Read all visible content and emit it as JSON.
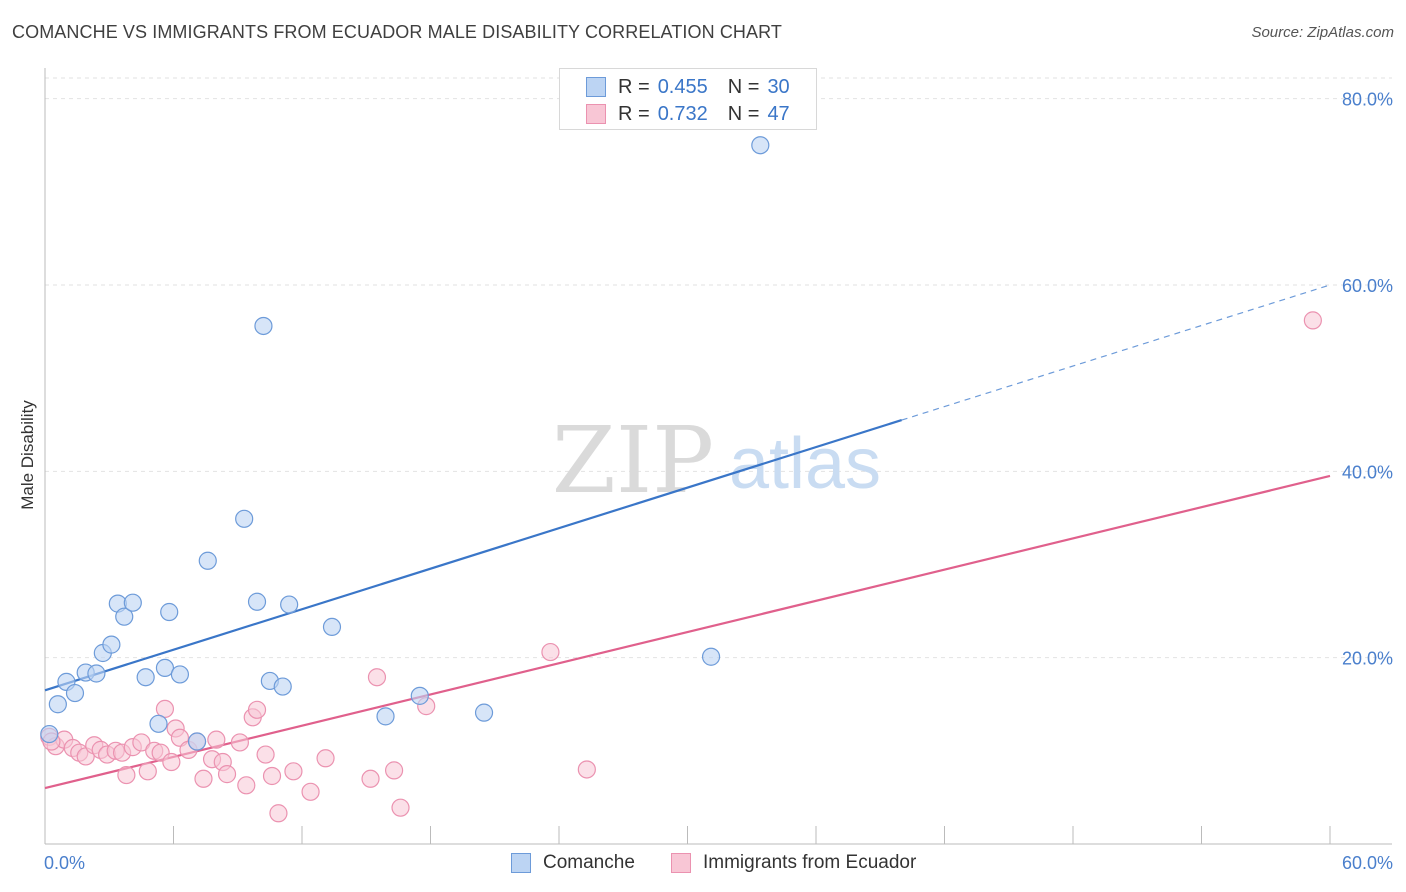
{
  "title": "COMANCHE VS IMMIGRANTS FROM ECUADOR MALE DISABILITY CORRELATION CHART",
  "source": "Source: ZipAtlas.com",
  "watermark": {
    "zip": "ZIP",
    "atlas": "atlas"
  },
  "colors": {
    "blue": "#3a76c8",
    "blue_fill": "#bcd4f3",
    "blue_stroke": "#6d9bd9",
    "pink": "#e0608c",
    "pink_fill": "#f8c6d5",
    "pink_stroke": "#eb92b0",
    "grid": "#e2e2e2",
    "tick_text": "#4a7fcc"
  },
  "legend": {
    "series": [
      {
        "r_label": "R =",
        "r_value": "0.455",
        "n_label": "N =",
        "n_value": "30"
      },
      {
        "r_label": "R =",
        "r_value": "0.732",
        "n_label": "N =",
        "n_value": "47"
      }
    ]
  },
  "bottom_legend": [
    "Comanche",
    "Immigrants from Ecuador"
  ],
  "chart_data": {
    "type": "scatter",
    "title": "COMANCHE VS IMMIGRANTS FROM ECUADOR MALE DISABILITY CORRELATION CHART",
    "xlabel": "",
    "ylabel": "Male Disability",
    "xlim": [
      0,
      60
    ],
    "ylim": [
      0,
      82
    ],
    "x_tick_labels": [
      "0.0%",
      "60.0%"
    ],
    "y_ticks": [
      20,
      40,
      60,
      80
    ],
    "y_tick_labels": [
      "20.0%",
      "40.0%",
      "60.0%",
      "80.0%"
    ],
    "x_minor_ticks": [
      0,
      6,
      12,
      18,
      24,
      30,
      36,
      42,
      48,
      54,
      60
    ],
    "grid": true,
    "series": [
      {
        "name": "Comanche",
        "color": "blue",
        "r": 0.455,
        "n": 30,
        "points": [
          [
            0.2,
            11.8
          ],
          [
            0.6,
            15.0
          ],
          [
            1.0,
            17.4
          ],
          [
            1.4,
            16.2
          ],
          [
            1.9,
            18.4
          ],
          [
            2.4,
            18.3
          ],
          [
            2.7,
            20.5
          ],
          [
            3.1,
            21.4
          ],
          [
            3.4,
            25.8
          ],
          [
            3.7,
            24.4
          ],
          [
            4.1,
            25.9
          ],
          [
            4.7,
            17.9
          ],
          [
            5.3,
            12.9
          ],
          [
            5.6,
            18.9
          ],
          [
            5.8,
            24.9
          ],
          [
            6.3,
            18.2
          ],
          [
            7.1,
            11.0
          ],
          [
            7.6,
            30.4
          ],
          [
            9.3,
            34.9
          ],
          [
            9.9,
            26.0
          ],
          [
            10.2,
            55.6
          ],
          [
            10.5,
            17.5
          ],
          [
            11.1,
            16.9
          ],
          [
            11.4,
            25.7
          ],
          [
            13.4,
            23.3
          ],
          [
            15.9,
            13.7
          ],
          [
            17.5,
            15.9
          ],
          [
            20.5,
            14.1
          ],
          [
            31.1,
            20.1
          ],
          [
            33.4,
            75.0
          ]
        ],
        "trend": {
          "x0": 0,
          "y0": 16.5,
          "x1": 40.0,
          "y1": 45.5,
          "dash_to_x": 60,
          "dash_to_y": 60.0
        }
      },
      {
        "name": "Immigrants from Ecuador",
        "color": "pink",
        "r": 0.732,
        "n": 47,
        "points": [
          [
            0.2,
            11.5
          ],
          [
            0.5,
            10.5
          ],
          [
            0.9,
            11.2
          ],
          [
            1.3,
            10.3
          ],
          [
            1.6,
            9.8
          ],
          [
            1.9,
            9.4
          ],
          [
            2.3,
            10.6
          ],
          [
            2.6,
            10.1
          ],
          [
            2.9,
            9.6
          ],
          [
            3.3,
            10.0
          ],
          [
            3.6,
            9.8
          ],
          [
            3.8,
            7.4
          ],
          [
            4.1,
            10.4
          ],
          [
            4.5,
            10.9
          ],
          [
            4.8,
            7.8
          ],
          [
            5.1,
            10.0
          ],
          [
            5.4,
            9.8
          ],
          [
            5.6,
            14.5
          ],
          [
            5.9,
            8.8
          ],
          [
            6.1,
            12.4
          ],
          [
            6.3,
            11.4
          ],
          [
            6.7,
            10.1
          ],
          [
            7.1,
            11.0
          ],
          [
            7.4,
            7.0
          ],
          [
            7.8,
            9.1
          ],
          [
            8.0,
            11.2
          ],
          [
            8.3,
            8.8
          ],
          [
            8.5,
            7.5
          ],
          [
            9.1,
            10.9
          ],
          [
            9.4,
            6.3
          ],
          [
            9.7,
            13.6
          ],
          [
            9.9,
            14.4
          ],
          [
            10.3,
            9.6
          ],
          [
            10.6,
            7.3
          ],
          [
            10.9,
            3.3
          ],
          [
            11.6,
            7.8
          ],
          [
            12.4,
            5.6
          ],
          [
            13.1,
            9.2
          ],
          [
            15.2,
            7.0
          ],
          [
            15.5,
            17.9
          ],
          [
            16.3,
            7.9
          ],
          [
            16.6,
            3.9
          ],
          [
            17.8,
            14.8
          ],
          [
            23.6,
            20.6
          ],
          [
            25.3,
            8.0
          ],
          [
            59.2,
            56.2
          ],
          [
            0.3,
            11.0
          ]
        ],
        "trend": {
          "x0": 0,
          "y0": 6.0,
          "x1": 60,
          "y1": 39.5
        }
      }
    ]
  }
}
